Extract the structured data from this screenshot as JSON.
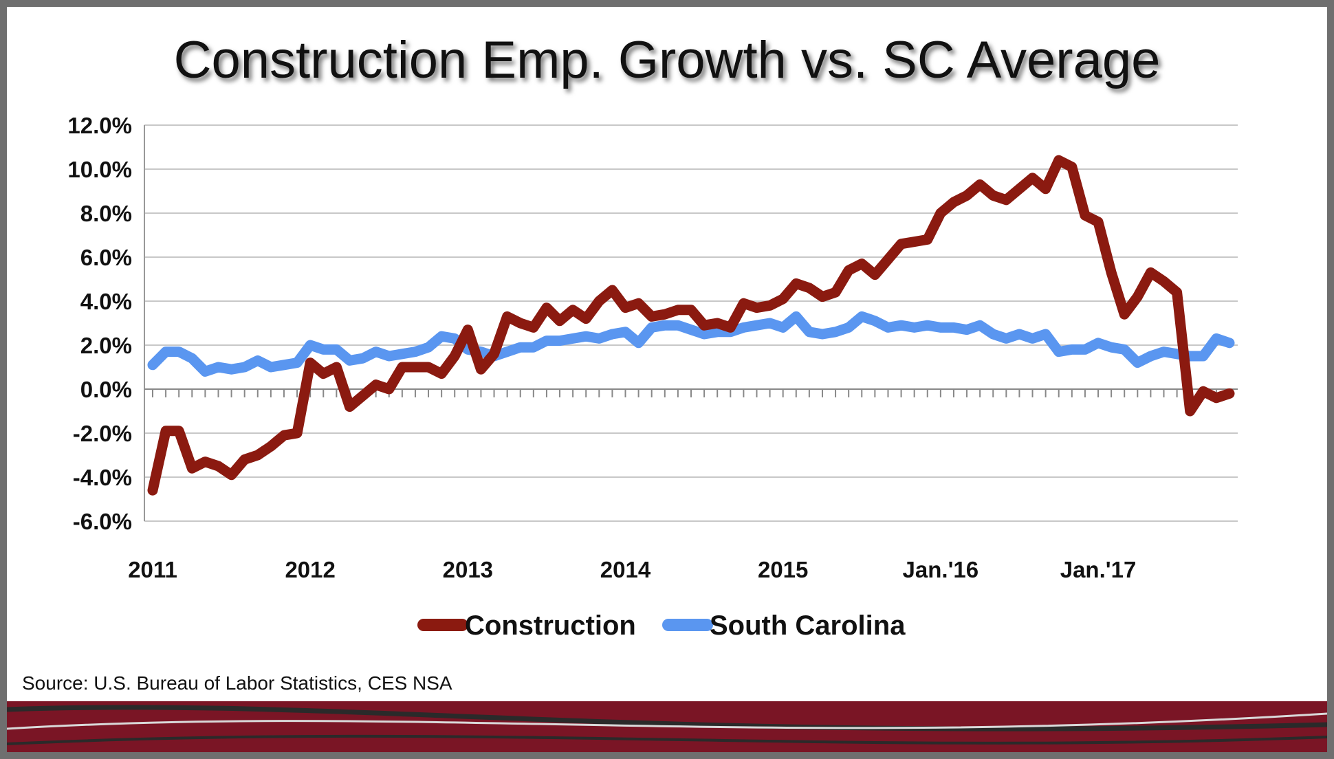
{
  "slide": {
    "title": "Construction Emp. Growth vs. SC Average",
    "source": "Source: U.S. Bureau of Labor Statistics, CES NSA"
  },
  "colors": {
    "construction": "#8b1a10",
    "south_carolina": "#5a96f0",
    "grid": "#c8c8c8",
    "band": "#7a1525"
  },
  "chart_data": {
    "type": "line",
    "title": "Construction Emp. Growth vs. SC Average",
    "xlabel": "",
    "ylabel": "",
    "ylim": [
      -6,
      12
    ],
    "yticks": [
      -6,
      -4,
      -2,
      0,
      2,
      4,
      6,
      8,
      10,
      12
    ],
    "ytick_labels": [
      "-6.0%",
      "-4.0%",
      "-2.0%",
      "0.0%",
      "2.0%",
      "4.0%",
      "6.0%",
      "8.0%",
      "10.0%",
      "12.0%"
    ],
    "x_tick_labels": [
      {
        "label": "2011",
        "month_index": 0
      },
      {
        "label": "2012",
        "month_index": 12
      },
      {
        "label": "2013",
        "month_index": 24
      },
      {
        "label": "2014",
        "month_index": 36
      },
      {
        "label": "2015",
        "month_index": 48
      },
      {
        "label": "Jan.'16",
        "month_index": 60
      },
      {
        "label": "Jan.'17",
        "month_index": 72
      }
    ],
    "grid": true,
    "legend": "bottom",
    "series": [
      {
        "name": "Construction",
        "values": [
          -4.6,
          -1.9,
          -1.9,
          -3.6,
          -3.3,
          -3.5,
          -3.9,
          -3.2,
          -3.0,
          -2.6,
          -2.1,
          -2.0,
          1.2,
          0.7,
          1.0,
          -0.8,
          -0.3,
          0.2,
          0.0,
          1.0,
          1.0,
          1.0,
          0.7,
          1.5,
          2.7,
          0.9,
          1.6,
          3.3,
          3.0,
          2.8,
          3.7,
          3.1,
          3.6,
          3.2,
          4.0,
          4.5,
          3.7,
          3.9,
          3.3,
          3.4,
          3.6,
          3.6,
          2.9,
          3.0,
          2.8,
          3.9,
          3.7,
          3.8,
          4.1,
          4.8,
          4.6,
          4.2,
          4.4,
          5.4,
          5.7,
          5.2,
          5.9,
          6.6,
          6.7,
          6.8,
          8.0,
          8.5,
          8.8,
          9.3,
          8.8,
          8.6,
          9.1,
          9.6,
          9.1,
          10.4,
          10.1,
          7.9,
          7.6,
          5.3,
          3.4,
          4.2,
          5.3,
          4.9,
          4.4,
          -1.0,
          -0.1,
          -0.4,
          -0.2
        ]
      },
      {
        "name": "South Carolina",
        "values": [
          1.1,
          1.7,
          1.7,
          1.4,
          0.8,
          1.0,
          0.9,
          1.0,
          1.3,
          1.0,
          1.1,
          1.2,
          2.0,
          1.8,
          1.8,
          1.3,
          1.4,
          1.7,
          1.5,
          1.6,
          1.7,
          1.9,
          2.4,
          2.3,
          1.8,
          1.7,
          1.5,
          1.7,
          1.9,
          1.9,
          2.2,
          2.2,
          2.3,
          2.4,
          2.3,
          2.5,
          2.6,
          2.1,
          2.8,
          2.9,
          2.9,
          2.7,
          2.5,
          2.6,
          2.6,
          2.8,
          2.9,
          3.0,
          2.8,
          3.3,
          2.6,
          2.5,
          2.6,
          2.8,
          3.3,
          3.1,
          2.8,
          2.9,
          2.8,
          2.9,
          2.8,
          2.8,
          2.7,
          2.9,
          2.5,
          2.3,
          2.5,
          2.3,
          2.5,
          1.7,
          1.8,
          1.8,
          2.1,
          1.9,
          1.8,
          1.2,
          1.5,
          1.7,
          1.6,
          1.5,
          1.5,
          2.3,
          2.1
        ]
      }
    ]
  }
}
